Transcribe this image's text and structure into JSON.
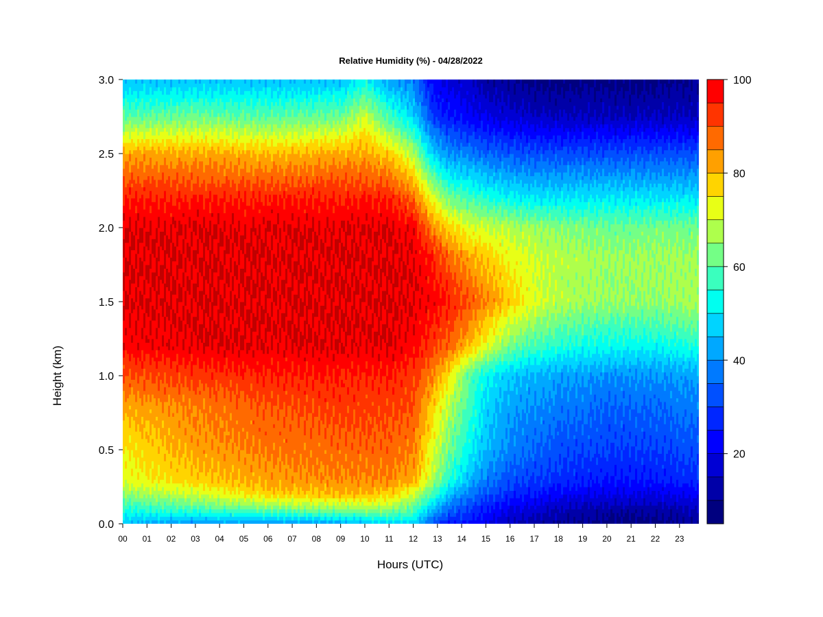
{
  "chart_data": {
    "type": "heatmap",
    "title": "Relative Humidity (%) - 04/28/2022",
    "xlabel": "Hours (UTC)",
    "ylabel": "Height (km)",
    "x_ticks": [
      "00",
      "01",
      "02",
      "03",
      "04",
      "05",
      "06",
      "07",
      "08",
      "09",
      "10",
      "11",
      "12",
      "13",
      "14",
      "15",
      "16",
      "17",
      "18",
      "19",
      "20",
      "21",
      "22",
      "23"
    ],
    "xlim": [
      0,
      23.8
    ],
    "ylim": [
      0,
      3.0
    ],
    "y_ticks": [
      "0.0",
      "0.5",
      "1.0",
      "1.5",
      "2.0",
      "2.5",
      "3.0"
    ],
    "colorbar": {
      "range": [
        5,
        100
      ],
      "step": 5,
      "ticks": [
        "20",
        "40",
        "60",
        "80",
        "100"
      ],
      "colors": [
        "#00007f",
        "#0000a8",
        "#0000d4",
        "#0000ff",
        "#0026ff",
        "#0050ff",
        "#007aff",
        "#00a8ff",
        "#00d4ff",
        "#00fff0",
        "#3affbe",
        "#74ff86",
        "#aeff4c",
        "#e8ff16",
        "#ffd400",
        "#ffa000",
        "#ff6a00",
        "#ff3400",
        "#ff0000",
        "#c00000",
        "#800000"
      ]
    },
    "heights_km": [
      0.0,
      0.1,
      0.2,
      0.3,
      0.5,
      0.8,
      1.0,
      1.2,
      1.5,
      1.8,
      2.0,
      2.2,
      2.5,
      2.75,
      3.0
    ],
    "hours": [
      0,
      3,
      6,
      9,
      10,
      11,
      12,
      12.8,
      13.5,
      14.3,
      15,
      16,
      17,
      18,
      20,
      22,
      23.8
    ],
    "values": [
      [
        45,
        40,
        40,
        42,
        45,
        48,
        48,
        32,
        25,
        25,
        20,
        15,
        12,
        10,
        8,
        8,
        10
      ],
      [
        55,
        58,
        62,
        65,
        65,
        65,
        60,
        45,
        35,
        30,
        25,
        20,
        18,
        15,
        12,
        12,
        15
      ],
      [
        65,
        70,
        78,
        80,
        80,
        78,
        70,
        58,
        45,
        38,
        32,
        27,
        25,
        22,
        20,
        20,
        22
      ],
      [
        72,
        78,
        82,
        85,
        85,
        85,
        82,
        68,
        55,
        45,
        38,
        32,
        30,
        28,
        25,
        25,
        28
      ],
      [
        75,
        82,
        86,
        88,
        88,
        88,
        86,
        72,
        62,
        52,
        45,
        38,
        35,
        32,
        30,
        30,
        32
      ],
      [
        82,
        86,
        90,
        92,
        92,
        92,
        90,
        78,
        68,
        58,
        48,
        42,
        40,
        38,
        35,
        35,
        38
      ],
      [
        90,
        92,
        95,
        95,
        95,
        95,
        92,
        85,
        75,
        60,
        52,
        46,
        44,
        42,
        40,
        40,
        42
      ],
      [
        98,
        100,
        100,
        100,
        100,
        100,
        98,
        92,
        88,
        80,
        72,
        62,
        58,
        55,
        52,
        52,
        55
      ],
      [
        100,
        100,
        100,
        100,
        100,
        100,
        100,
        98,
        95,
        90,
        85,
        78,
        72,
        68,
        65,
        65,
        68
      ],
      [
        100,
        100,
        100,
        100,
        100,
        100,
        100,
        95,
        88,
        82,
        78,
        74,
        70,
        68,
        66,
        66,
        66
      ],
      [
        100,
        100,
        100,
        100,
        100,
        100,
        98,
        85,
        78,
        72,
        70,
        68,
        66,
        64,
        62,
        62,
        62
      ],
      [
        95,
        95,
        95,
        95,
        95,
        95,
        88,
        72,
        62,
        58,
        55,
        52,
        50,
        50,
        50,
        50,
        50
      ],
      [
        82,
        82,
        80,
        82,
        82,
        78,
        68,
        48,
        40,
        38,
        35,
        33,
        32,
        32,
        32,
        32,
        32
      ],
      [
        60,
        62,
        60,
        62,
        70,
        58,
        48,
        30,
        25,
        22,
        20,
        18,
        16,
        15,
        15,
        15,
        15
      ],
      [
        45,
        45,
        45,
        45,
        52,
        42,
        38,
        22,
        18,
        15,
        12,
        10,
        8,
        8,
        8,
        8,
        10
      ]
    ]
  }
}
